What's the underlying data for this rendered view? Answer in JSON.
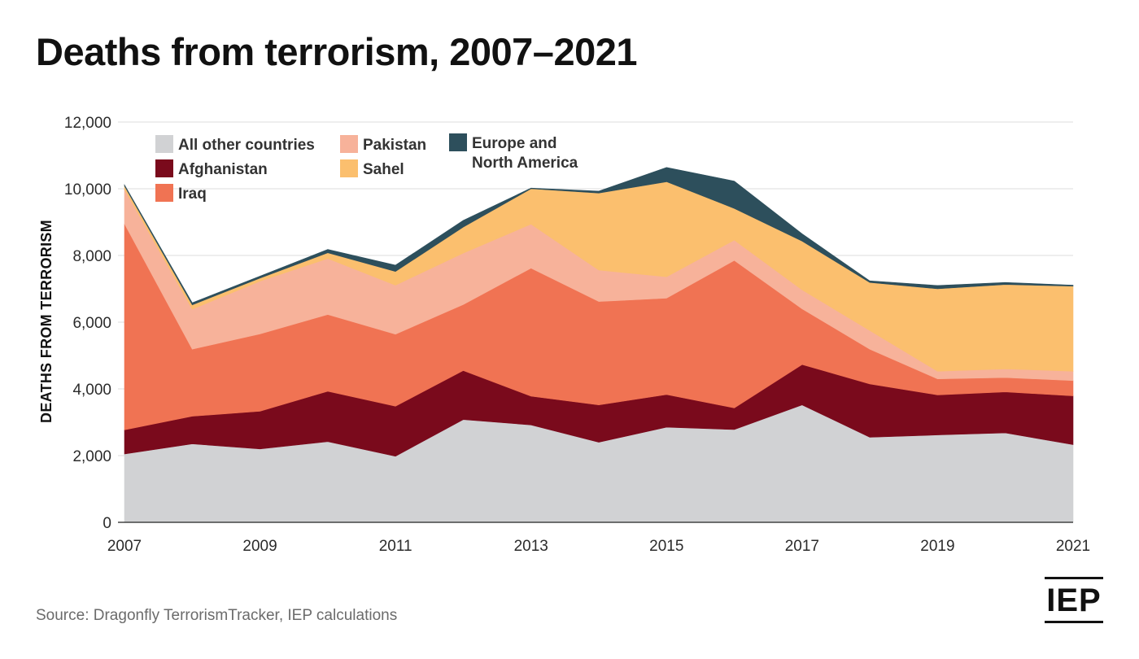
{
  "title": "Deaths from terrorism, 2007–2021",
  "source": "Source: Dragonfly TerrorismTracker, IEP calculations",
  "logo": "IEP",
  "chart_data": {
    "type": "area",
    "stacked": true,
    "title": "Deaths from terrorism, 2007–2021",
    "xlabel": "",
    "ylabel": "DEATHS FROM TERRORISM",
    "ylim": [
      0,
      12000
    ],
    "yticks": [
      0,
      2000,
      4000,
      6000,
      8000,
      10000,
      12000
    ],
    "ytick_labels": [
      "0",
      "2,000",
      "4,000",
      "6,000",
      "8,000",
      "10,000",
      "12,000"
    ],
    "x": [
      2007,
      2008,
      2009,
      2010,
      2011,
      2012,
      2013,
      2014,
      2015,
      2016,
      2017,
      2018,
      2019,
      2020,
      2021
    ],
    "xticks": [
      2007,
      2009,
      2011,
      2013,
      2015,
      2017,
      2019,
      2021
    ],
    "xtick_labels": [
      "2007",
      "2009",
      "2011",
      "2013",
      "2015",
      "2017",
      "2019",
      "2021"
    ],
    "grid": true,
    "legend_position": "top-left",
    "series": [
      {
        "name": "All other countries",
        "color": "#d1d2d4",
        "values": [
          2050,
          2350,
          2200,
          2420,
          1980,
          3080,
          2920,
          2400,
          2850,
          2780,
          3520,
          2550,
          2620,
          2680,
          2330
        ]
      },
      {
        "name": "Afghanistan",
        "color": "#7a0a1c",
        "values": [
          720,
          830,
          1130,
          1510,
          1500,
          1470,
          860,
          1120,
          980,
          650,
          1210,
          1600,
          1200,
          1230,
          1460
        ]
      },
      {
        "name": "Iraq",
        "color": "#f07353",
        "values": [
          6180,
          2010,
          2320,
          2300,
          2160,
          1980,
          3840,
          3100,
          2890,
          4420,
          1670,
          1040,
          480,
          430,
          460
        ]
      },
      {
        "name": "Pakistan",
        "color": "#f7b29a",
        "values": [
          1030,
          1200,
          1580,
          1680,
          1470,
          1540,
          1320,
          940,
          640,
          610,
          570,
          560,
          230,
          260,
          280
        ]
      },
      {
        "name": "Sahel",
        "color": "#fbbf6e",
        "values": [
          100,
          130,
          90,
          170,
          410,
          780,
          1060,
          2310,
          2850,
          950,
          1460,
          1440,
          2470,
          2530,
          2550
        ]
      },
      {
        "name": "Europe and North America",
        "color": "#2d4f5c",
        "values": [
          40,
          60,
          60,
          100,
          190,
          200,
          20,
          60,
          430,
          820,
          220,
          50,
          100,
          60,
          30
        ]
      }
    ]
  }
}
